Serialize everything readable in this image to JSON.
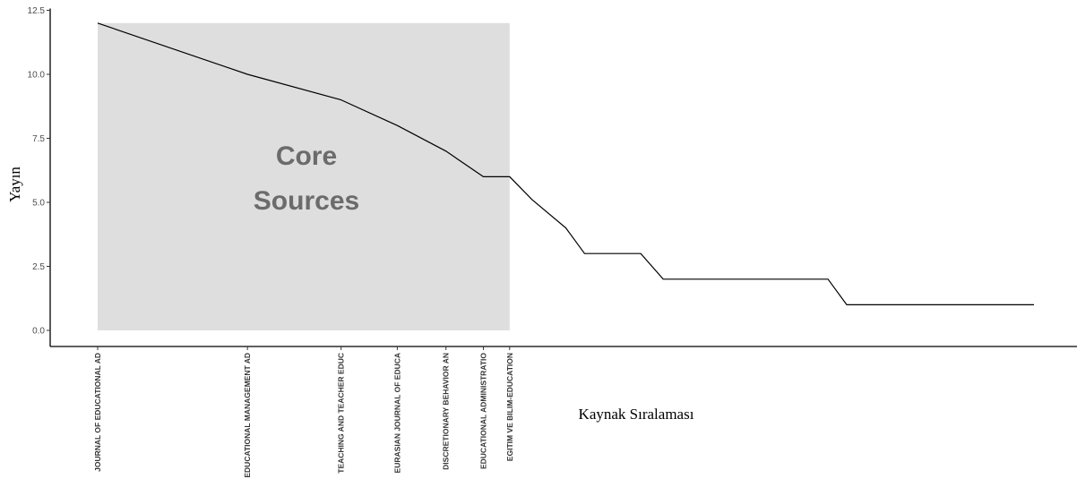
{
  "chart_data": {
    "type": "line",
    "ylabel": "Yayın",
    "xlabel": "Kaynak Sıralaması",
    "ylim": [
      0,
      12.5
    ],
    "y_ticks": [
      "0.0",
      "2.5",
      "5.0",
      "7.5",
      "10.0",
      "12.5"
    ],
    "y_tick_values": [
      0,
      2.5,
      5.0,
      7.5,
      10.0,
      12.5
    ],
    "grid": false,
    "core_zone": {
      "label_line1": "Core",
      "label_line2": "Sources",
      "from_rank": 1,
      "to_rank": 12,
      "fill_color": "#dedede"
    },
    "categories": [
      {
        "rank": 1,
        "label": "JOURNAL OF EDUCATIONAL AD"
      },
      {
        "rank": 5,
        "label": "EDUCATIONAL MANAGEMENT AD"
      },
      {
        "rank": 7.5,
        "label": "TEACHING AND TEACHER EDUC"
      },
      {
        "rank": 9,
        "label": "EURASIAN JOURNAL OF EDUCA"
      },
      {
        "rank": 10.3,
        "label": "DISCRETIONARY BEHAVIOR AN"
      },
      {
        "rank": 11.3,
        "label": "EDUCATIONAL ADMINISTRATIO"
      },
      {
        "rank": 12,
        "label": "EGITIM VE BILIM-EDUCATION"
      }
    ],
    "series": [
      {
        "line_color": "#000000",
        "x": [
          1,
          5,
          7.5,
          9,
          10.3,
          11.3,
          12,
          12.6,
          13.5,
          14,
          15.5,
          16.1,
          20.5,
          21,
          26
        ],
        "y": [
          12,
          10,
          9,
          8,
          7,
          6,
          6,
          5.1,
          4,
          3,
          3,
          2,
          2,
          1,
          1
        ]
      }
    ]
  }
}
